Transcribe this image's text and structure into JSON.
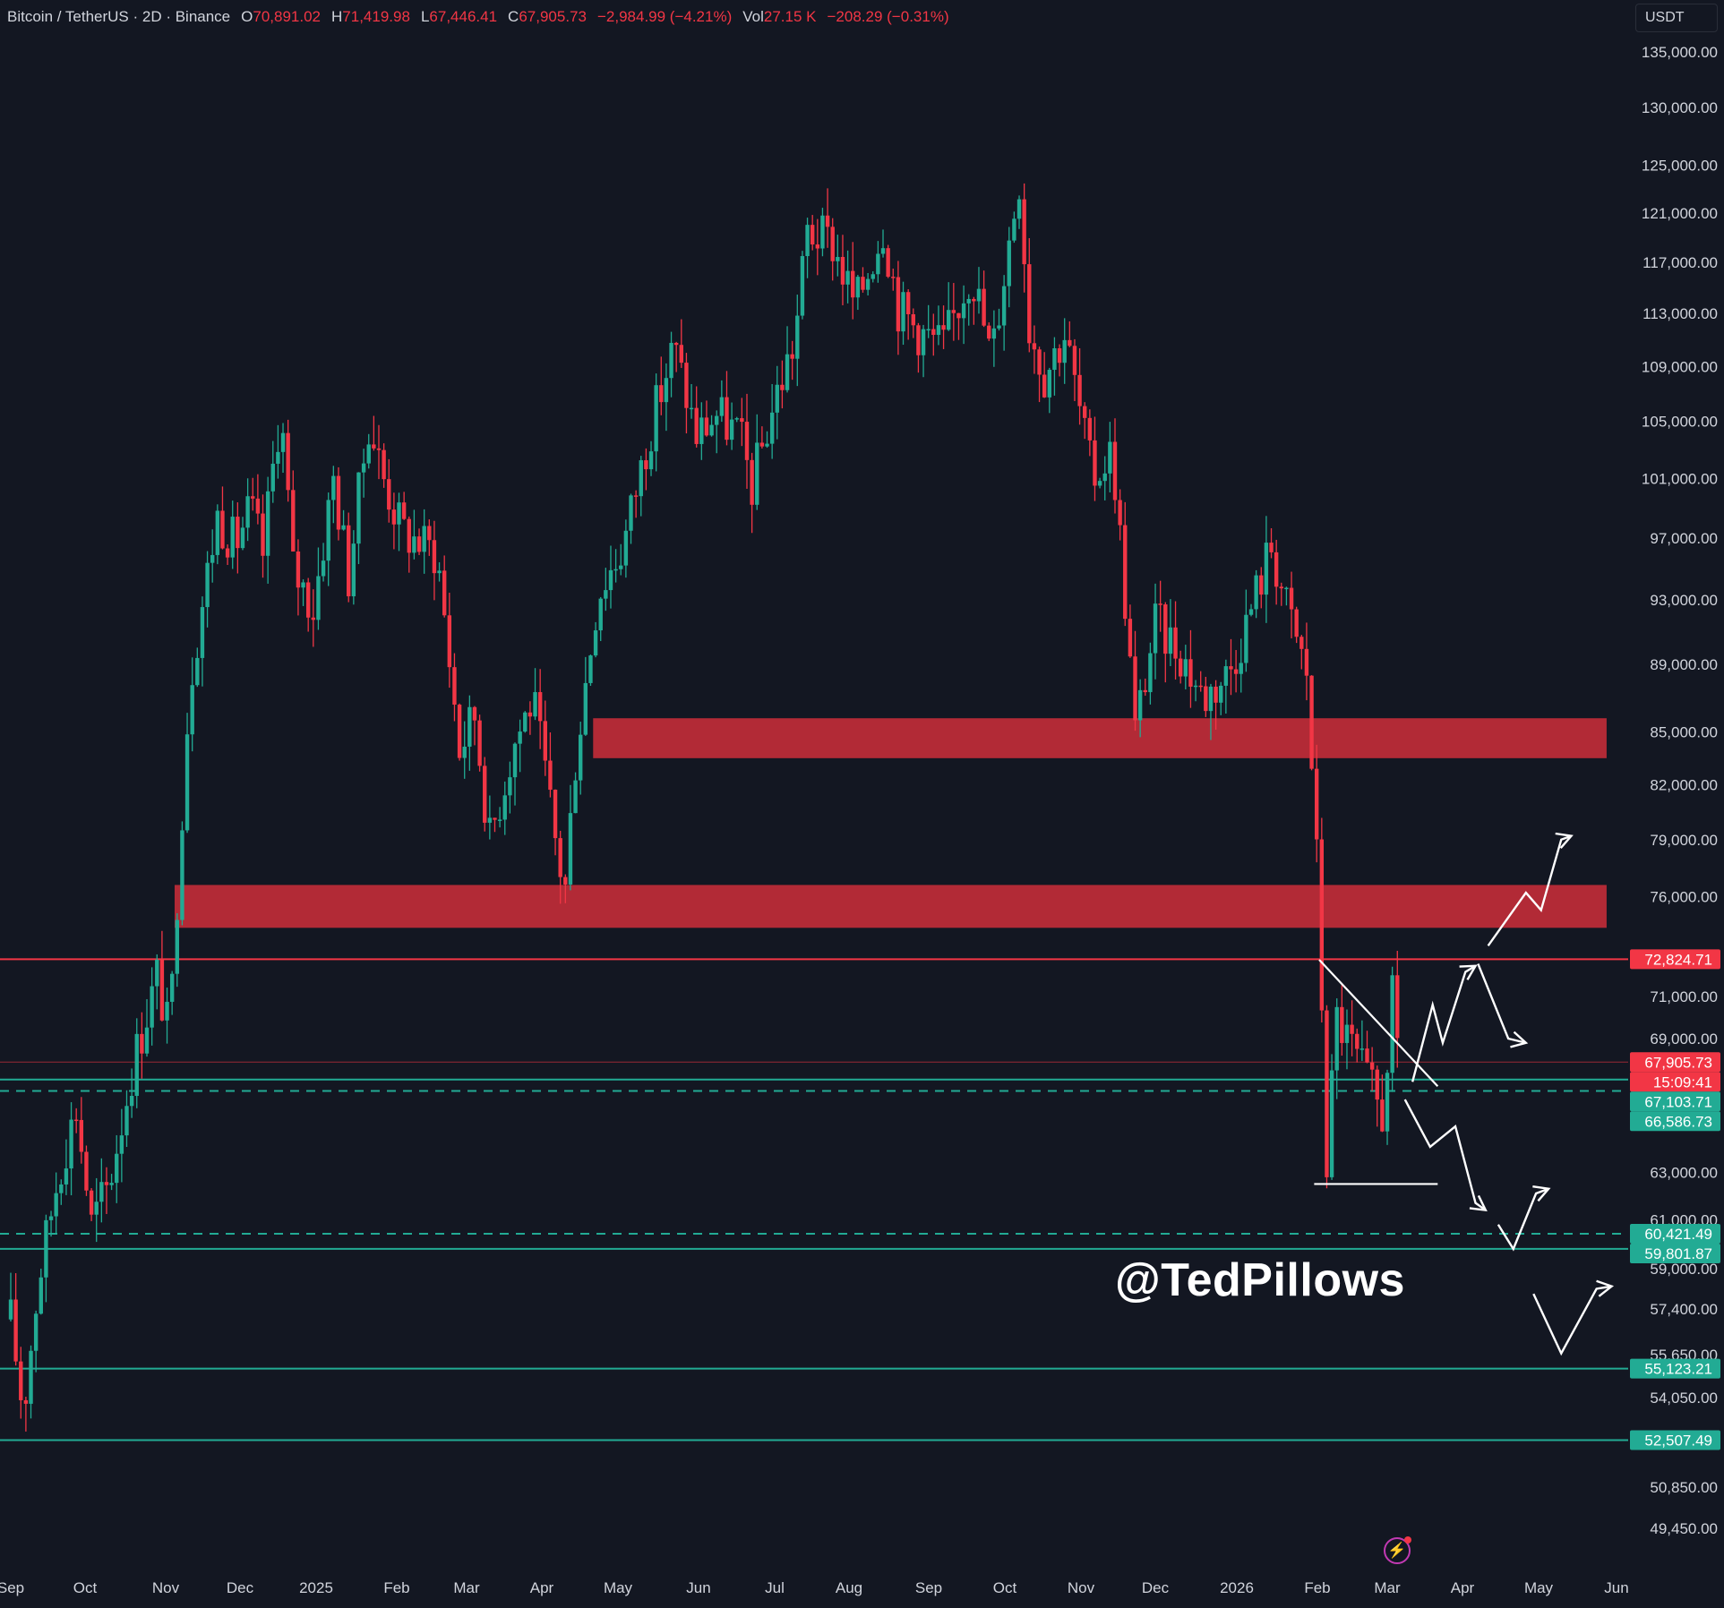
{
  "header": {
    "symbol": "Bitcoin / TetherUS · 2D · Binance",
    "open_label": "O",
    "open": "70,891.02",
    "high_label": "H",
    "high": "71,419.98",
    "low_label": "L",
    "low": "67,446.41",
    "close_label": "C",
    "close": "67,905.73",
    "change": "−2,984.99 (−4.21%)",
    "vol_label": "Vol",
    "vol": "27.15 K",
    "vol_change": "−208.29 (−0.31%)"
  },
  "currency": "USDT",
  "watermark": "@TedPillows",
  "colors": {
    "background": "#131722",
    "up": "#22ab94",
    "down": "#f23645",
    "zone": "#b22a36",
    "drawing": "#ffffff",
    "axis_text": "#d1d4dc"
  },
  "chart_data": {
    "type": "candlestick",
    "y_scale": "log",
    "ylim": [
      48000,
      137000
    ],
    "y_ticks": [
      "135,000.00",
      "130,000.00",
      "125,000.00",
      "121,000.00",
      "117,000.00",
      "113,000.00",
      "109,000.00",
      "105,000.00",
      "101,000.00",
      "97,000.00",
      "93,000.00",
      "89,000.00",
      "85,000.00",
      "82,000.00",
      "79,000.00",
      "76,000.00",
      "71,000.00",
      "69,000.00",
      "63,000.00",
      "61,000.00",
      "59,000.00",
      "57,400.00",
      "55,650.00",
      "54,050.00",
      "50,850.00",
      "49,450.00"
    ],
    "x_ticks": [
      "Sep",
      "Oct",
      "Nov",
      "Dec",
      "2025",
      "Feb",
      "Mar",
      "Apr",
      "May",
      "Jun",
      "Jul",
      "Aug",
      "Sep",
      "Oct",
      "Nov",
      "Dec",
      "2026",
      "Feb",
      "Mar",
      "Apr",
      "May",
      "Jun"
    ],
    "price_labels": [
      {
        "text": "72,824.71",
        "value": 72824.71,
        "color": "#f23645"
      },
      {
        "text": "67,905.73",
        "value": 67905.73,
        "color": "#f23645"
      },
      {
        "text": "15:09:41",
        "value": 67905.73,
        "color": "#f23645"
      },
      {
        "text": "67,103.71",
        "value": 67103.71,
        "color": "#22ab94"
      },
      {
        "text": "66,586.73",
        "value": 66586.73,
        "color": "#22ab94"
      },
      {
        "text": "60,421.49",
        "value": 60421.49,
        "color": "#22ab94"
      },
      {
        "text": "59,801.87",
        "value": 59801.87,
        "color": "#22ab94"
      },
      {
        "text": "55,123.21",
        "value": 55123.21,
        "color": "#22ab94"
      },
      {
        "text": "52,507.49",
        "value": 52507.49,
        "color": "#22ab94"
      }
    ],
    "horizontal_lines": [
      {
        "value": 72824.71,
        "color": "#f23645",
        "style": "solid"
      },
      {
        "value": 67905.73,
        "color": "#f23645",
        "style": "thin"
      },
      {
        "value": 67103.71,
        "color": "#22ab94",
        "style": "solid"
      },
      {
        "value": 66586.73,
        "color": "#22ab94",
        "style": "dashed"
      },
      {
        "value": 60421.49,
        "color": "#22ab94",
        "style": "dashed"
      },
      {
        "value": 59801.87,
        "color": "#22ab94",
        "style": "solid"
      },
      {
        "value": 55123.21,
        "color": "#22ab94",
        "style": "solid"
      },
      {
        "value": 52507.49,
        "color": "#22ab94",
        "style": "solid"
      }
    ],
    "zones": [
      {
        "low": 83500,
        "high": 85800,
        "from": "2025-04-20",
        "to": "2026-05-27"
      },
      {
        "low": 74400,
        "high": 76600,
        "from": "2024-11-05",
        "to": "2026-05-27"
      }
    ],
    "price_path": [
      [
        "2024-09-01",
        57000
      ],
      [
        "2024-09-06",
        53500
      ],
      [
        "2024-09-12",
        58500
      ],
      [
        "2024-09-20",
        63000
      ],
      [
        "2024-09-27",
        65800
      ],
      [
        "2024-10-03",
        60800
      ],
      [
        "2024-10-10",
        62500
      ],
      [
        "2024-10-20",
        68000
      ],
      [
        "2024-10-29",
        72000
      ],
      [
        "2024-11-03",
        69000
      ],
      [
        "2024-11-11",
        88000
      ],
      [
        "2024-11-22",
        98500
      ],
      [
        "2024-11-29",
        96500
      ],
      [
        "2024-12-05",
        99000
      ],
      [
        "2024-12-10",
        96000
      ],
      [
        "2024-12-17",
        106000
      ],
      [
        "2024-12-22",
        95000
      ],
      [
        "2024-12-30",
        92500
      ],
      [
        "2025-01-07",
        101000
      ],
      [
        "2025-01-13",
        94500
      ],
      [
        "2025-01-21",
        105000
      ],
      [
        "2025-01-27",
        101000
      ],
      [
        "2025-02-03",
        97500
      ],
      [
        "2025-02-17",
        96000
      ],
      [
        "2025-02-26",
        84000
      ],
      [
        "2025-03-04",
        86000
      ],
      [
        "2025-03-10",
        79000
      ],
      [
        "2025-03-20",
        84500
      ],
      [
        "2025-03-27",
        87000
      ],
      [
        "2025-04-06",
        78000
      ],
      [
        "2025-04-09",
        76500
      ],
      [
        "2025-04-13",
        83500
      ],
      [
        "2025-04-22",
        93500
      ],
      [
        "2025-05-02",
        96500
      ],
      [
        "2025-05-12",
        104000
      ],
      [
        "2025-05-22",
        110500
      ],
      [
        "2025-05-31",
        104000
      ],
      [
        "2025-06-08",
        105500
      ],
      [
        "2025-06-17",
        104000
      ],
      [
        "2025-06-22",
        100500
      ],
      [
        "2025-07-01",
        106500
      ],
      [
        "2025-07-09",
        111000
      ],
      [
        "2025-07-14",
        119500
      ],
      [
        "2025-07-24",
        118500
      ],
      [
        "2025-08-02",
        113500
      ],
      [
        "2025-08-13",
        120000
      ],
      [
        "2025-08-19",
        113500
      ],
      [
        "2025-08-28",
        111500
      ],
      [
        "2025-09-06",
        110500
      ],
      [
        "2025-09-17",
        116500
      ],
      [
        "2025-09-25",
        109500
      ],
      [
        "2025-10-06",
        124000
      ],
      [
        "2025-10-10",
        112000
      ],
      [
        "2025-10-16",
        108500
      ],
      [
        "2025-10-24",
        111500
      ],
      [
        "2025-11-04",
        101000
      ],
      [
        "2025-11-12",
        103000
      ],
      [
        "2025-11-21",
        85000
      ],
      [
        "2025-11-29",
        91500
      ],
      [
        "2025-12-08",
        90000
      ],
      [
        "2025-12-18",
        87000
      ],
      [
        "2025-12-28",
        88500
      ],
      [
        "2026-01-04",
        91500
      ],
      [
        "2026-01-14",
        96500
      ],
      [
        "2026-01-20",
        92500
      ],
      [
        "2026-01-28",
        88500
      ],
      [
        "2026-02-01",
        78000
      ],
      [
        "2026-02-05",
        63500
      ],
      [
        "2026-02-09",
        70000
      ],
      [
        "2026-02-15",
        68500
      ],
      [
        "2026-02-21",
        67000
      ],
      [
        "2026-02-27",
        65500
      ],
      [
        "2026-03-03",
        70891.02
      ],
      [
        "2026-03-05",
        67905.73
      ]
    ],
    "drawings": [
      {
        "type": "trendline",
        "from": [
          "2026-02-02",
          72800
        ],
        "to": [
          "2026-03-21",
          66800
        ]
      },
      {
        "type": "hline",
        "from": [
          "2026-01-31",
          62500
        ],
        "to": [
          "2026-03-21",
          62500
        ]
      },
      {
        "type": "path",
        "points": [
          [
            "2026-03-11",
            67000
          ],
          [
            "2026-03-19",
            70600
          ],
          [
            "2026-03-23",
            68800
          ],
          [
            "2026-04-01",
            72200
          ],
          [
            "2026-04-05",
            72500
          ]
        ]
      },
      {
        "type": "path",
        "points": [
          [
            "2026-04-06",
            72600
          ],
          [
            "2026-04-18",
            69000
          ],
          [
            "2026-04-25",
            68800
          ]
        ]
      },
      {
        "type": "path",
        "points": [
          [
            "2026-04-10",
            73500
          ],
          [
            "2026-04-25",
            76200
          ],
          [
            "2026-05-01",
            75300
          ],
          [
            "2026-05-09",
            79000
          ],
          [
            "2026-05-13",
            79200
          ]
        ]
      },
      {
        "type": "path",
        "points": [
          [
            "2026-03-08",
            66200
          ],
          [
            "2026-03-18",
            64100
          ],
          [
            "2026-03-28",
            65000
          ],
          [
            "2026-04-05",
            61700
          ],
          [
            "2026-04-09",
            61400
          ]
        ]
      },
      {
        "type": "path",
        "points": [
          [
            "2026-04-14",
            60800
          ],
          [
            "2026-04-20",
            59800
          ],
          [
            "2026-04-29",
            62100
          ],
          [
            "2026-05-04",
            62300
          ]
        ]
      },
      {
        "type": "path",
        "points": [
          [
            "2026-04-28",
            58000
          ],
          [
            "2026-05-09",
            55700
          ],
          [
            "2026-05-23",
            58200
          ],
          [
            "2026-05-29",
            58300
          ]
        ]
      }
    ]
  }
}
